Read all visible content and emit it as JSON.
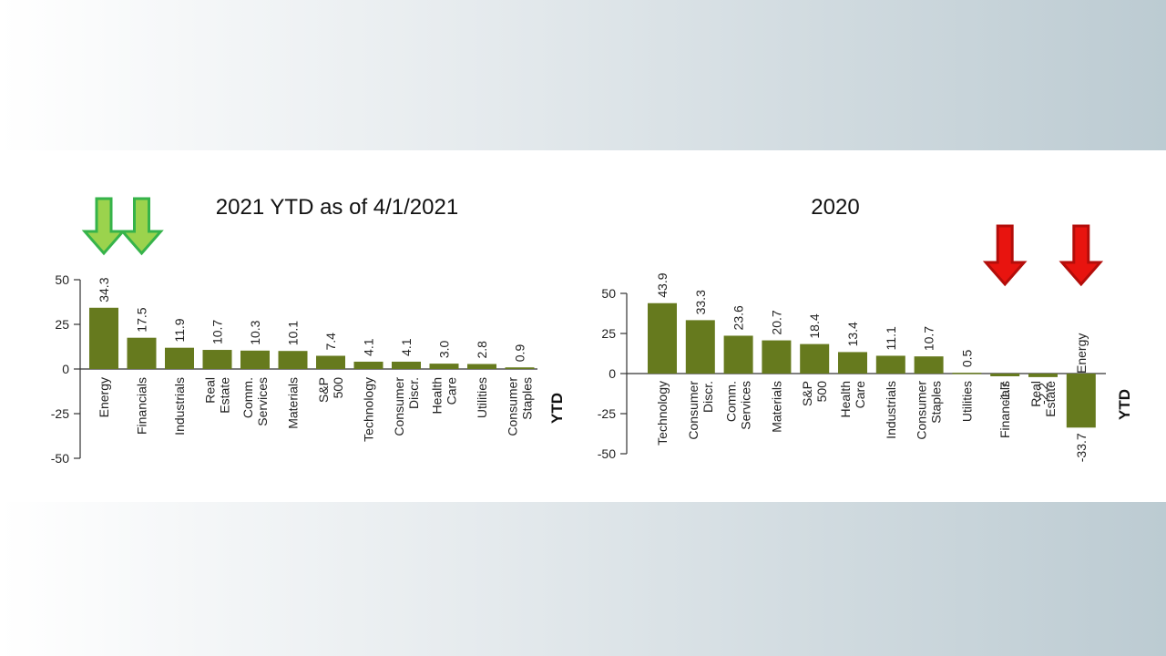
{
  "chart_data": [
    {
      "type": "bar",
      "title": "2021 YTD as of 4/1/2021",
      "ylabel": "YTD",
      "ylim": [
        -50,
        50
      ],
      "yticks": [
        50,
        25,
        0,
        -25,
        -50
      ],
      "bar_color": "#667a1e",
      "categories": [
        "Energy",
        "Financials",
        "Industrials",
        "Real Estate",
        "Comm. Services",
        "Materials",
        "S&P 500",
        "Technology",
        "Consumer Discr.",
        "Health Care",
        "Utilities",
        "Consumer Staples"
      ],
      "values": [
        34.3,
        17.5,
        11.9,
        10.7,
        10.3,
        10.1,
        7.4,
        4.1,
        4.1,
        3.0,
        2.8,
        0.9
      ],
      "value_labels": [
        "34.3",
        "17.5",
        "11.9",
        "10.7",
        "10.3",
        "10.1",
        "7.4",
        "4.1",
        "4.1",
        "3.0",
        "2.8",
        "0.9"
      ],
      "highlight_arrows": [
        {
          "category": "Energy",
          "color": "#36b34a",
          "icon": "arrow-down-icon"
        },
        {
          "category": "Financials",
          "color": "#36b34a",
          "icon": "arrow-down-icon"
        }
      ]
    },
    {
      "type": "bar",
      "title": "2020",
      "ylabel": "YTD",
      "ylim": [
        -50,
        50
      ],
      "yticks": [
        50,
        25,
        0,
        -25,
        -50
      ],
      "bar_color": "#667a1e",
      "categories": [
        "Technology",
        "Consumer Discr.",
        "Comm. Services",
        "Materials",
        "S&P 500",
        "Health Care",
        "Industrials",
        "Consumer Staples",
        "Utilities",
        "Financials",
        "Real Estate",
        "Energy"
      ],
      "values": [
        43.9,
        33.3,
        23.6,
        20.7,
        18.4,
        13.4,
        11.1,
        10.7,
        0.5,
        -1.7,
        -2.2,
        -33.7
      ],
      "value_labels": [
        "43.9",
        "33.3",
        "23.6",
        "20.7",
        "18.4",
        "13.4",
        "11.1",
        "10.7",
        "0.5",
        "-1.7",
        "-2.2",
        "-33.7"
      ],
      "highlight_arrows": [
        {
          "category": "Financials",
          "color": "#e8140f",
          "icon": "arrow-down-icon"
        },
        {
          "category": "Energy",
          "color": "#e8140f",
          "icon": "arrow-down-icon"
        }
      ]
    }
  ]
}
